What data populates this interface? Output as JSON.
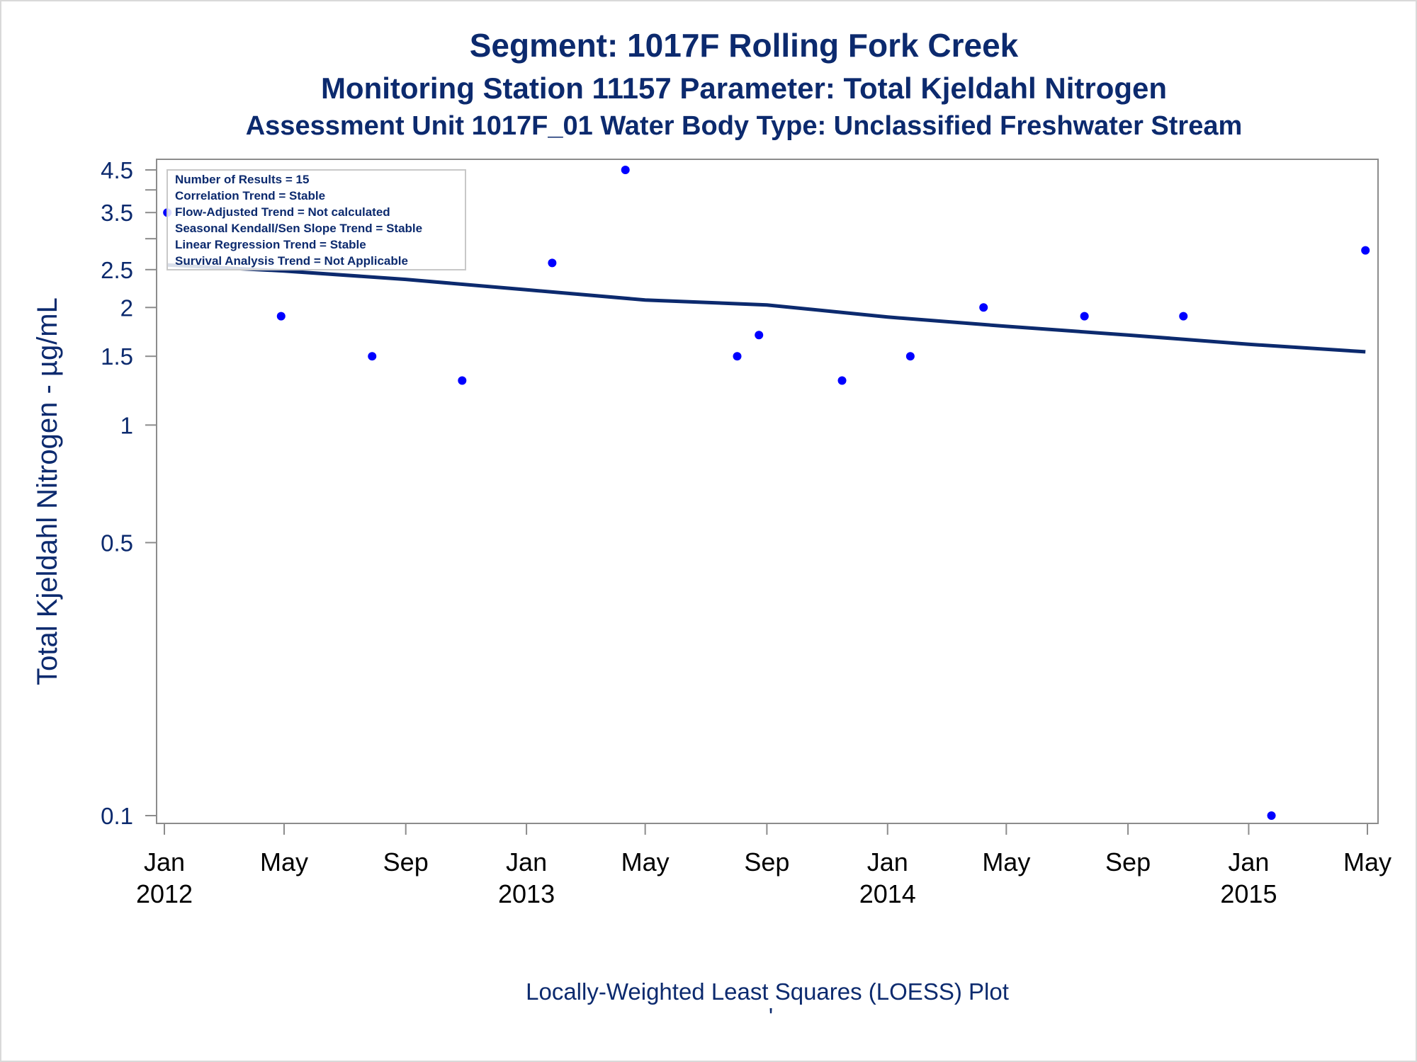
{
  "titles": {
    "line1": "Segment: 1017F  Rolling Fork Creek",
    "line2": "Monitoring Station 11157 Parameter: Total Kjeldahl Nitrogen",
    "line3": "Assessment Unit 1017F_01   Water Body Type: Unclassified Freshwater Stream"
  },
  "footnote": "Locally-Weighted Least Squares (LOESS) Plot",
  "footnote_mark": "'",
  "stats_box": [
    "Number of Results = 15",
    "Correlation Trend = Stable",
    "Flow-Adjusted Trend = Not calculated",
    "Seasonal Kendall/Sen Slope Trend = Stable",
    "Linear Regression Trend = Stable",
    "Survival Analysis Trend = Not Applicable"
  ],
  "colors": {
    "text": "#0c2a6e",
    "points": "#0000ff",
    "trend_line": "#0c2a6e",
    "axis": "#8c8c8c"
  },
  "chart_data": {
    "type": "scatter",
    "title": "Segment: 1017F  Rolling Fork Creek",
    "ylabel": "Total Kjeldahl Nitrogen -  µg/mL",
    "xlabel": "",
    "y_scale": "log",
    "ylim": [
      0.1,
      4.5
    ],
    "xlim": [
      "2012-01-01",
      "2015-05-01"
    ],
    "y_ticks": [
      0.1,
      0.5,
      1,
      1.5,
      2,
      2.5,
      3.5,
      4.5
    ],
    "y_tick_labels": [
      "0.1",
      "0.5",
      "1",
      "1.5",
      "2",
      "2.5",
      "3.5",
      "4.5"
    ],
    "y_minor_ticks": [
      3,
      4
    ],
    "x_ticks": [
      {
        "date": "2012-01-01",
        "label": "Jan",
        "year": "2012"
      },
      {
        "date": "2012-05-01",
        "label": "May",
        "year": ""
      },
      {
        "date": "2012-09-01",
        "label": "Sep",
        "year": ""
      },
      {
        "date": "2013-01-01",
        "label": "Jan",
        "year": "2013"
      },
      {
        "date": "2013-05-01",
        "label": "May",
        "year": ""
      },
      {
        "date": "2013-09-01",
        "label": "Sep",
        "year": ""
      },
      {
        "date": "2014-01-01",
        "label": "Jan",
        "year": "2014"
      },
      {
        "date": "2014-05-01",
        "label": "May",
        "year": ""
      },
      {
        "date": "2014-09-01",
        "label": "Sep",
        "year": ""
      },
      {
        "date": "2015-01-01",
        "label": "Jan",
        "year": "2015"
      },
      {
        "date": "2015-05-01",
        "label": "May",
        "year": ""
      }
    ],
    "series": [
      {
        "points": [
          {
            "x": "2012-01-04",
            "y": 3.5
          },
          {
            "x": "2012-04-28",
            "y": 1.9
          },
          {
            "x": "2012-07-29",
            "y": 1.5
          },
          {
            "x": "2012-10-28",
            "y": 1.3
          },
          {
            "x": "2013-01-27",
            "y": 2.6
          },
          {
            "x": "2013-04-11",
            "y": 4.5
          },
          {
            "x": "2013-08-02",
            "y": 1.5
          },
          {
            "x": "2013-08-24",
            "y": 1.7
          },
          {
            "x": "2013-11-16",
            "y": 1.3
          },
          {
            "x": "2014-01-24",
            "y": 1.5
          },
          {
            "x": "2014-04-08",
            "y": 2.0
          },
          {
            "x": "2014-07-19",
            "y": 1.9
          },
          {
            "x": "2014-10-27",
            "y": 1.9
          },
          {
            "x": "2015-01-24",
            "y": 0.1
          },
          {
            "x": "2015-04-29",
            "y": 2.8
          }
        ]
      },
      {
        "type": "line",
        "points": [
          {
            "x": "2012-01-04",
            "y": 2.57
          },
          {
            "x": "2012-05-01",
            "y": 2.48
          },
          {
            "x": "2012-09-01",
            "y": 2.36
          },
          {
            "x": "2013-01-01",
            "y": 2.22
          },
          {
            "x": "2013-05-01",
            "y": 2.09
          },
          {
            "x": "2013-09-01",
            "y": 2.03
          },
          {
            "x": "2014-01-01",
            "y": 1.89
          },
          {
            "x": "2014-05-01",
            "y": 1.79
          },
          {
            "x": "2014-09-01",
            "y": 1.7
          },
          {
            "x": "2015-01-01",
            "y": 1.61
          },
          {
            "x": "2015-04-29",
            "y": 1.54
          }
        ]
      }
    ]
  }
}
